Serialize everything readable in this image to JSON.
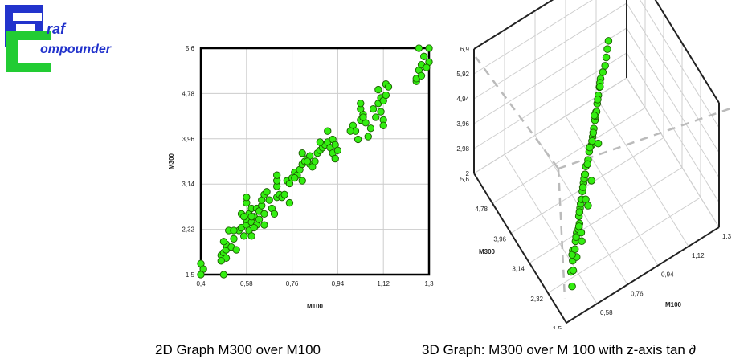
{
  "logo": {
    "line1": "raf",
    "line2": "ompounder",
    "letter1": "G",
    "letter2": "C"
  },
  "captions": {
    "left": "2D Graph M300 over M100",
    "right": "3D Graph: M300 over M 100 with z-axis tan ∂"
  },
  "chart_data": [
    {
      "type": "scatter",
      "title": "",
      "xlabel": "M100",
      "ylabel": "M300",
      "xlim": [
        0.4,
        1.3
      ],
      "ylim": [
        1.5,
        5.6
      ],
      "x_ticks": [
        "0,4",
        "0,58",
        "0,76",
        "0,94",
        "1,12",
        "1,3"
      ],
      "y_ticks": [
        "1,5",
        "2,32",
        "3,14",
        "3,96",
        "4,78",
        "5,6"
      ],
      "grid": true,
      "point_color": "#33ee11",
      "points": [
        [
          0.4,
          1.7
        ],
        [
          0.41,
          1.6
        ],
        [
          0.4,
          1.5
        ],
        [
          0.49,
          1.5
        ],
        [
          0.48,
          1.85
        ],
        [
          0.49,
          1.9
        ],
        [
          0.5,
          1.8
        ],
        [
          0.5,
          1.95
        ],
        [
          0.48,
          1.75
        ],
        [
          0.5,
          2.05
        ],
        [
          0.49,
          2.1
        ],
        [
          0.51,
          2.3
        ],
        [
          0.52,
          2.0
        ],
        [
          0.54,
          1.95
        ],
        [
          0.53,
          2.15
        ],
        [
          0.55,
          2.3
        ],
        [
          0.56,
          2.35
        ],
        [
          0.57,
          2.2
        ],
        [
          0.58,
          2.4
        ],
        [
          0.58,
          2.5
        ],
        [
          0.59,
          2.3
        ],
        [
          0.59,
          2.6
        ],
        [
          0.6,
          2.7
        ],
        [
          0.6,
          2.45
        ],
        [
          0.61,
          2.55
        ],
        [
          0.62,
          2.4
        ],
        [
          0.62,
          2.7
        ],
        [
          0.63,
          2.65
        ],
        [
          0.64,
          2.75
        ],
        [
          0.65,
          2.6
        ],
        [
          0.58,
          2.8
        ],
        [
          0.58,
          2.9
        ],
        [
          0.6,
          2.55
        ],
        [
          0.61,
          2.35
        ],
        [
          0.63,
          2.5
        ],
        [
          0.64,
          2.85
        ],
        [
          0.65,
          2.95
        ],
        [
          0.66,
          3.0
        ],
        [
          0.67,
          2.85
        ],
        [
          0.68,
          2.7
        ],
        [
          0.69,
          2.6
        ],
        [
          0.7,
          2.9
        ],
        [
          0.7,
          3.1
        ],
        [
          0.7,
          3.2
        ],
        [
          0.7,
          3.3
        ],
        [
          0.71,
          2.95
        ],
        [
          0.72,
          2.9
        ],
        [
          0.73,
          2.95
        ],
        [
          0.74,
          3.2
        ],
        [
          0.75,
          3.15
        ],
        [
          0.76,
          3.25
        ],
        [
          0.77,
          3.35
        ],
        [
          0.78,
          3.3
        ],
        [
          0.79,
          3.4
        ],
        [
          0.8,
          3.2
        ],
        [
          0.8,
          3.5
        ],
        [
          0.81,
          3.55
        ],
        [
          0.82,
          3.6
        ],
        [
          0.83,
          3.5
        ],
        [
          0.84,
          3.45
        ],
        [
          0.85,
          3.55
        ],
        [
          0.86,
          3.7
        ],
        [
          0.87,
          3.75
        ],
        [
          0.88,
          3.8
        ],
        [
          0.89,
          3.85
        ],
        [
          0.9,
          3.9
        ],
        [
          0.91,
          3.8
        ],
        [
          0.92,
          3.95
        ],
        [
          0.92,
          3.7
        ],
        [
          0.93,
          3.6
        ],
        [
          0.93,
          3.85
        ],
        [
          0.94,
          3.75
        ],
        [
          0.9,
          4.1
        ],
        [
          0.8,
          3.7
        ],
        [
          0.83,
          3.65
        ],
        [
          1.0,
          4.2
        ],
        [
          1.01,
          4.1
        ],
        [
          1.02,
          3.95
        ],
        [
          1.03,
          4.3
        ],
        [
          1.04,
          4.4
        ],
        [
          1.05,
          4.25
        ],
        [
          1.06,
          4.0
        ],
        [
          1.07,
          4.15
        ],
        [
          1.08,
          4.5
        ],
        [
          1.09,
          4.35
        ],
        [
          1.1,
          4.6
        ],
        [
          1.11,
          4.7
        ],
        [
          1.12,
          4.65
        ],
        [
          1.13,
          4.75
        ],
        [
          1.1,
          4.85
        ],
        [
          1.12,
          4.3
        ],
        [
          1.12,
          4.2
        ],
        [
          1.03,
          4.5
        ],
        [
          1.03,
          4.6
        ],
        [
          1.13,
          4.95
        ],
        [
          1.14,
          4.9
        ],
        [
          1.25,
          5.0
        ],
        [
          1.25,
          5.05
        ],
        [
          1.26,
          5.2
        ],
        [
          1.27,
          5.3
        ],
        [
          1.28,
          5.45
        ],
        [
          1.26,
          5.6
        ],
        [
          1.3,
          5.6
        ],
        [
          1.3,
          5.35
        ],
        [
          1.29,
          5.25
        ],
        [
          1.27,
          5.1
        ],
        [
          0.56,
          2.6
        ],
        [
          0.57,
          2.55
        ],
        [
          0.53,
          2.3
        ],
        [
          0.77,
          3.25
        ],
        [
          0.82,
          3.55
        ],
        [
          0.87,
          3.9
        ],
        [
          0.75,
          2.8
        ],
        [
          0.65,
          2.4
        ],
        [
          0.6,
          2.2
        ],
        [
          0.99,
          4.1
        ],
        [
          1.04,
          4.35
        ],
        [
          1.11,
          4.45
        ]
      ]
    },
    {
      "type": "scatter",
      "title": "",
      "xlabel": "M100",
      "ylabel": "M300",
      "x_ticks": [
        "0,4",
        "0,58",
        "0,76",
        "0,94",
        "1,12",
        "1,3"
      ],
      "y_ticks": [
        "1,5",
        "2,32",
        "3,14",
        "3,96",
        "4,78",
        "5,6"
      ],
      "z_ticks": [
        "2",
        "2,98",
        "3,96",
        "4,94",
        "5,92",
        "6,9"
      ],
      "xlim": [
        0.4,
        1.3
      ],
      "ylim": [
        1.5,
        5.6
      ],
      "zlim": [
        2,
        6.9
      ],
      "grid": true,
      "point_color": "#33ee11",
      "points": [
        [
          0.5,
          2.0,
          2.3
        ],
        [
          0.52,
          2.2,
          2.5
        ],
        [
          0.55,
          2.35,
          2.6
        ],
        [
          0.57,
          2.5,
          2.7
        ],
        [
          0.58,
          2.4,
          2.55
        ],
        [
          0.6,
          2.6,
          2.8
        ],
        [
          0.62,
          2.7,
          2.9
        ],
        [
          0.63,
          2.55,
          2.75
        ],
        [
          0.65,
          2.8,
          3.0
        ],
        [
          0.66,
          2.9,
          3.1
        ],
        [
          0.68,
          3.0,
          3.2
        ],
        [
          0.7,
          3.1,
          3.3
        ],
        [
          0.72,
          3.2,
          3.4
        ],
        [
          0.74,
          3.3,
          3.5
        ],
        [
          0.76,
          3.4,
          3.6
        ],
        [
          0.78,
          3.5,
          3.7
        ],
        [
          0.8,
          3.55,
          3.8
        ],
        [
          0.82,
          3.65,
          3.9
        ],
        [
          0.84,
          3.7,
          4.0
        ],
        [
          0.86,
          3.8,
          4.1
        ],
        [
          0.88,
          3.9,
          4.2
        ],
        [
          0.9,
          4.0,
          4.3
        ],
        [
          0.92,
          4.1,
          4.4
        ],
        [
          0.94,
          4.2,
          4.5
        ],
        [
          0.96,
          4.3,
          4.6
        ],
        [
          0.98,
          4.4,
          4.7
        ],
        [
          1.0,
          4.5,
          4.8
        ],
        [
          1.02,
          4.55,
          4.9
        ],
        [
          1.04,
          4.6,
          5.0
        ],
        [
          1.06,
          4.7,
          5.1
        ],
        [
          0.54,
          2.25,
          2.4
        ],
        [
          0.56,
          2.45,
          2.65
        ],
        [
          0.61,
          2.65,
          2.85
        ],
        [
          0.64,
          2.75,
          2.95
        ],
        [
          0.67,
          2.95,
          3.15
        ],
        [
          0.69,
          3.05,
          3.25
        ],
        [
          0.73,
          3.25,
          3.45
        ],
        [
          0.75,
          3.35,
          3.55
        ],
        [
          0.79,
          3.5,
          3.75
        ],
        [
          0.83,
          3.7,
          3.95
        ],
        [
          0.87,
          3.85,
          4.15
        ],
        [
          0.91,
          4.05,
          4.35
        ],
        [
          0.95,
          4.25,
          4.55
        ],
        [
          0.99,
          4.45,
          4.75
        ],
        [
          0.59,
          2.55,
          2.6
        ],
        [
          0.63,
          2.7,
          3.0
        ],
        [
          0.71,
          3.15,
          3.2
        ],
        [
          0.77,
          3.45,
          3.5
        ],
        [
          0.85,
          3.75,
          4.05
        ],
        [
          0.93,
          4.15,
          4.3
        ],
        [
          0.62,
          2.6,
          3.3
        ],
        [
          0.7,
          2.9,
          3.6
        ],
        [
          0.8,
          3.4,
          3.2
        ],
        [
          0.88,
          3.7,
          3.9
        ],
        [
          0.74,
          3.1,
          2.9
        ],
        [
          0.66,
          2.8,
          2.6
        ],
        [
          1.08,
          4.8,
          5.2
        ],
        [
          1.1,
          4.9,
          5.3
        ],
        [
          0.97,
          4.3,
          4.9
        ],
        [
          0.89,
          3.95,
          4.6
        ]
      ]
    }
  ]
}
